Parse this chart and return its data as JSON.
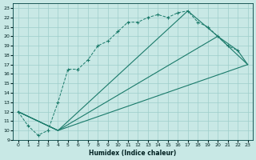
{
  "xlabel": "Humidex (Indice chaleur)",
  "bg_color": "#c8e8e5",
  "grid_color": "#9ececa",
  "line_color": "#1a7a6a",
  "xlim": [
    -0.5,
    23.5
  ],
  "ylim": [
    9,
    23.5
  ],
  "xtick_labels": [
    "0",
    "1",
    "2",
    "3",
    "4",
    "5",
    "6",
    "7",
    "8",
    "9",
    "10",
    "11",
    "12",
    "13",
    "14",
    "15",
    "16",
    "17",
    "18",
    "19",
    "20",
    "21",
    "22",
    "23"
  ],
  "xticks": [
    0,
    1,
    2,
    3,
    4,
    5,
    6,
    7,
    8,
    9,
    10,
    11,
    12,
    13,
    14,
    15,
    16,
    17,
    18,
    19,
    20,
    21,
    22,
    23
  ],
  "yticks": [
    9,
    10,
    11,
    12,
    13,
    14,
    15,
    16,
    17,
    18,
    19,
    20,
    21,
    22,
    23
  ],
  "dotted_x": [
    0,
    1,
    2,
    3,
    4,
    5,
    6,
    7,
    8,
    9,
    10,
    11,
    12,
    13,
    14,
    15,
    16,
    17,
    18,
    19,
    20,
    21,
    22
  ],
  "dotted_y": [
    12,
    10.5,
    9.5,
    10,
    13,
    16.5,
    16.5,
    17.5,
    19,
    19.5,
    20.5,
    21.5,
    21.5,
    22,
    22.3,
    22,
    22.5,
    22.7,
    21.5,
    21,
    20,
    19,
    18.5
  ],
  "line1_x": [
    0,
    4,
    23
  ],
  "line1_y": [
    12,
    10,
    17
  ],
  "line2_x": [
    0,
    4,
    20,
    23
  ],
  "line2_y": [
    12,
    10,
    20,
    17
  ],
  "line3_x": [
    0,
    4,
    17,
    20,
    22,
    23
  ],
  "line3_y": [
    12,
    10,
    22.7,
    20,
    18.5,
    17
  ]
}
